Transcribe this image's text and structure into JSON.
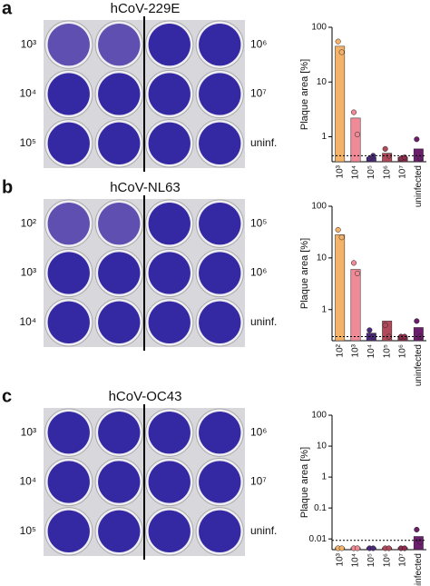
{
  "panels": [
    {
      "letter": "a",
      "title": "hCoV-229E",
      "left_labels": [
        "10³",
        "10⁴",
        "10⁵"
      ],
      "right_labels": [
        "10⁶",
        "10⁷",
        "uninf."
      ]
    },
    {
      "letter": "b",
      "title": "hCoV-NL63",
      "left_labels": [
        "10²",
        "10³",
        "10⁴"
      ],
      "right_labels": [
        "10⁵",
        "10⁶",
        "uninf."
      ]
    },
    {
      "letter": "c",
      "title": "hCoV-OC43",
      "left_labels": [
        "10³",
        "10⁴",
        "10⁵"
      ],
      "right_labels": [
        "10⁶",
        "10⁷",
        "uninf."
      ]
    }
  ],
  "chart_data": [
    {
      "type": "bar",
      "ylabel": "Plaque area [%]",
      "log_scale": true,
      "categories": [
        "10³",
        "10⁴",
        "10⁵",
        "10⁶",
        "10⁷",
        "uninfected"
      ],
      "values": [
        45,
        2.2,
        0.42,
        0.5,
        0.42,
        0.6
      ],
      "points": [
        [
          55,
          35
        ],
        [
          2.8,
          1.1
        ],
        [
          0.4,
          0.45
        ],
        [
          0.6,
          0.45
        ],
        [
          0.4,
          0.42
        ],
        [
          0.9,
          0.4
        ]
      ],
      "colors": [
        "#f5b36a",
        "#f08a96",
        "#4b2a7a",
        "#b04a5a",
        "#8b2c4a",
        "#6b1e6b"
      ],
      "threshold": 0.45,
      "ylim": [
        0.35,
        100
      ],
      "yticks": [
        1,
        10,
        100
      ]
    },
    {
      "type": "bar",
      "ylabel": "Plaque area [%]",
      "log_scale": true,
      "categories": [
        "10²",
        "10³",
        "10⁴",
        "10⁵",
        "10⁶",
        "uninfected"
      ],
      "values": [
        28,
        6,
        0.35,
        0.6,
        0.3,
        0.45
      ],
      "points": [
        [
          35,
          25
        ],
        [
          8,
          5
        ],
        [
          0.4,
          0.3
        ],
        [
          0.5,
          0.3
        ],
        [
          0.3,
          0.3
        ],
        [
          0.6,
          0.3
        ]
      ],
      "colors": [
        "#f5b36a",
        "#f08a96",
        "#4b2a7a",
        "#b04a5a",
        "#8b2c4a",
        "#6b1e6b"
      ],
      "threshold": 0.3,
      "ylim": [
        0.25,
        100
      ],
      "yticks": [
        1,
        10,
        100
      ]
    },
    {
      "type": "bar",
      "ylabel": "Plaque area [%]",
      "log_scale": true,
      "categories": [
        "10³",
        "10⁴",
        "10⁵",
        "10⁶",
        "10⁷",
        "uninfected"
      ],
      "values": [
        0.0052,
        0.0052,
        0.0052,
        0.0052,
        0.0052,
        0.012
      ],
      "points": [
        [
          0.005,
          0.005
        ],
        [
          0.005,
          0.005
        ],
        [
          0.005,
          0.005
        ],
        [
          0.005,
          0.005
        ],
        [
          0.005,
          0.005
        ],
        [
          0.02,
          0.008
        ]
      ],
      "colors": [
        "#f5b36a",
        "#f08a96",
        "#4b2a7a",
        "#b04a5a",
        "#8b2c4a",
        "#6b1e6b"
      ],
      "threshold": 0.009,
      "ylim": [
        0.0045,
        100
      ],
      "yticks": [
        0.01,
        0.1,
        1,
        10,
        100
      ]
    }
  ]
}
